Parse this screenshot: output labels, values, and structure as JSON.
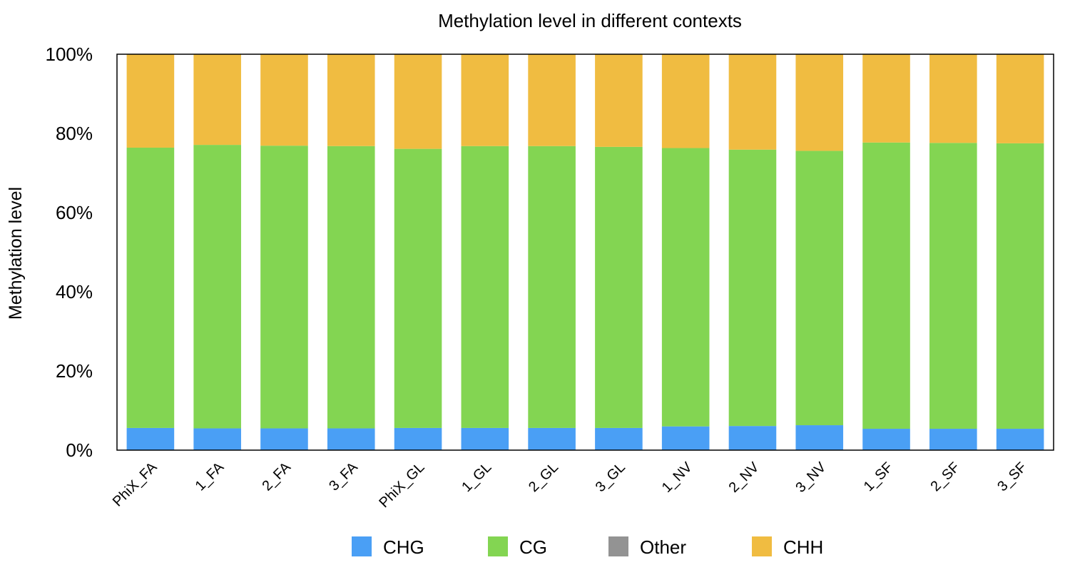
{
  "chart_data": {
    "type": "bar",
    "stacked": true,
    "title": "Methylation level in different contexts",
    "xlabel": "",
    "ylabel": "Methylation level",
    "ylim": [
      0,
      100
    ],
    "yticks": [
      "0%",
      "20%",
      "40%",
      "60%",
      "80%",
      "100%"
    ],
    "categories": [
      "PhiX_FA",
      "1_FA",
      "2_FA",
      "3_FA",
      "PhiX_GL",
      "1_GL",
      "2_GL",
      "3_GL",
      "1_NV",
      "2_NV",
      "3_NV",
      "1_SF",
      "2_SF",
      "3_SF"
    ],
    "series": [
      {
        "name": "CHG",
        "color": "#4a9ff5",
        "values": [
          5.6,
          5.5,
          5.5,
          5.5,
          5.6,
          5.6,
          5.6,
          5.6,
          6.0,
          6.1,
          6.3,
          5.4,
          5.4,
          5.4
        ]
      },
      {
        "name": "CG",
        "color": "#83d552",
        "values": [
          70.8,
          71.6,
          71.4,
          71.3,
          70.5,
          71.2,
          71.2,
          71.0,
          70.3,
          69.8,
          69.3,
          72.3,
          72.2,
          72.1
        ]
      },
      {
        "name": "Other",
        "color": "#939393",
        "values": [
          0,
          0,
          0,
          0,
          0,
          0,
          0,
          0,
          0,
          0,
          0,
          0,
          0,
          0
        ]
      },
      {
        "name": "CHH",
        "color": "#f0bc41",
        "values": [
          23.6,
          22.9,
          23.1,
          23.2,
          23.9,
          23.2,
          23.2,
          23.4,
          23.7,
          24.1,
          24.4,
          22.3,
          22.4,
          22.5
        ]
      }
    ],
    "grid": false,
    "legend_position": "bottom"
  }
}
